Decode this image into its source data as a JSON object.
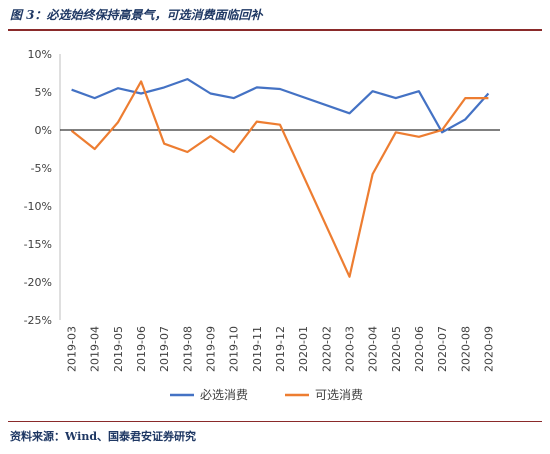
{
  "header": {
    "title": "图 3：必选始终保持高景气，可选消费面临回补"
  },
  "footer": {
    "source": "资料来源：Wind、国泰君安证券研究"
  },
  "chart_data": {
    "type": "line",
    "title": "",
    "xlabel": "",
    "ylabel": "",
    "categories": [
      "2019-03",
      "2019-04",
      "2019-05",
      "2019-06",
      "2019-07",
      "2019-08",
      "2019-09",
      "2019-10",
      "2019-11",
      "2019-12",
      "2020-01",
      "2020-02",
      "2020-03",
      "2020-04",
      "2020-05",
      "2020-06",
      "2020-07",
      "2020-08",
      "2020-09"
    ],
    "ylim": [
      -25,
      10
    ],
    "yticks": [
      10,
      5,
      0,
      -5,
      -10,
      -15,
      -20,
      -25
    ],
    "ytick_labels": [
      "10%",
      "5%",
      "0%",
      "-5%",
      "-10%",
      "-15%",
      "-20%",
      "-25%"
    ],
    "grid": false,
    "legend_position": "bottom",
    "series": [
      {
        "name": "必选消费",
        "color": "#4472c4",
        "values": [
          5.3,
          4.2,
          5.5,
          4.8,
          5.6,
          6.7,
          4.8,
          4.2,
          5.6,
          5.4,
          null,
          null,
          2.2,
          5.1,
          4.2,
          5.1,
          -0.3,
          1.4,
          4.8
        ]
      },
      {
        "name": "可选消费",
        "color": "#ed7d31",
        "values": [
          -0.1,
          -2.5,
          1.0,
          6.4,
          -1.8,
          -2.9,
          -0.8,
          -2.9,
          1.1,
          0.7,
          null,
          null,
          -19.3,
          -5.8,
          -0.3,
          -0.9,
          0.0,
          4.2,
          4.2
        ]
      }
    ]
  }
}
